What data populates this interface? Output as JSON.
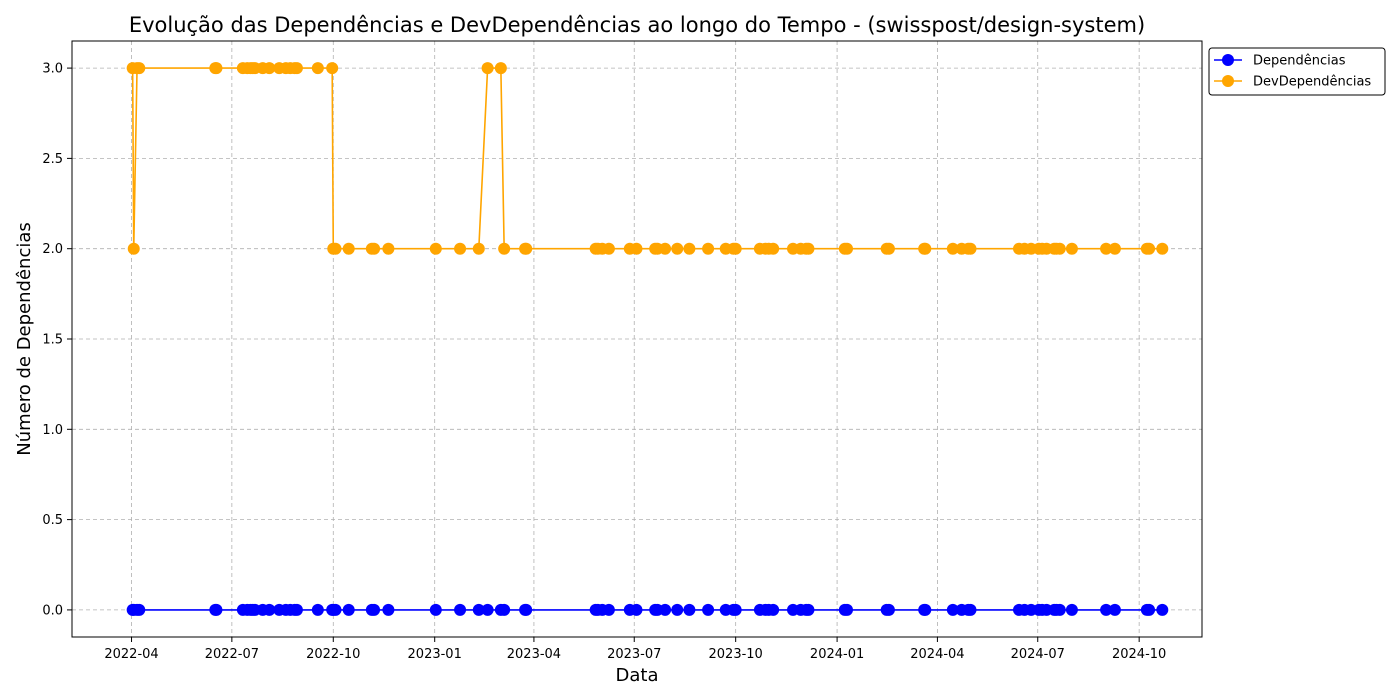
{
  "chart_data": {
    "type": "line",
    "title": "Evolução das Dependências e DevDependências ao longo do Tempo - (swisspost/design-system)",
    "xlabel": "Data",
    "ylabel": "Número de Dependências",
    "xlim": [
      "2022-02-06",
      "2024-11-27"
    ],
    "ylim": [
      -0.15,
      3.15
    ],
    "x_ticks": [
      "2022-04",
      "2022-07",
      "2022-10",
      "2023-01",
      "2023-04",
      "2023-07",
      "2023-10",
      "2024-01",
      "2024-04",
      "2024-07",
      "2024-10"
    ],
    "y_ticks": [
      "0.0",
      "0.5",
      "1.0",
      "1.5",
      "2.0",
      "2.5",
      "3.0"
    ],
    "grid": true,
    "legend": {
      "position": "top-right-outside"
    },
    "series": [
      {
        "name": "Dependências",
        "color": "#0000ff",
        "points": [
          [
            "2022-04-02",
            0
          ],
          [
            "2022-04-03",
            0
          ],
          [
            "2022-04-06",
            0
          ],
          [
            "2022-04-08",
            0
          ],
          [
            "2022-06-16",
            0
          ],
          [
            "2022-06-17",
            0
          ],
          [
            "2022-07-11",
            0
          ],
          [
            "2022-07-15",
            0
          ],
          [
            "2022-07-18",
            0
          ],
          [
            "2022-07-20",
            0
          ],
          [
            "2022-07-22",
            0
          ],
          [
            "2022-07-29",
            0
          ],
          [
            "2022-08-04",
            0
          ],
          [
            "2022-08-13",
            0
          ],
          [
            "2022-08-19",
            0
          ],
          [
            "2022-08-23",
            0
          ],
          [
            "2022-08-27",
            0
          ],
          [
            "2022-08-29",
            0
          ],
          [
            "2022-09-17",
            0
          ],
          [
            "2022-09-30",
            0
          ],
          [
            "2022-10-01",
            0
          ],
          [
            "2022-10-03",
            0
          ],
          [
            "2022-10-15",
            0
          ],
          [
            "2022-11-05",
            0
          ],
          [
            "2022-11-07",
            0
          ],
          [
            "2022-11-20",
            0
          ],
          [
            "2023-01-02",
            0
          ],
          [
            "2023-01-24",
            0
          ],
          [
            "2023-02-10",
            0
          ],
          [
            "2023-02-18",
            0
          ],
          [
            "2023-03-02",
            0
          ],
          [
            "2023-03-05",
            0
          ],
          [
            "2023-03-24",
            0
          ],
          [
            "2023-03-25",
            0
          ],
          [
            "2023-05-27",
            0
          ],
          [
            "2023-05-29",
            0
          ],
          [
            "2023-06-02",
            0
          ],
          [
            "2023-06-08",
            0
          ],
          [
            "2023-06-27",
            0
          ],
          [
            "2023-07-03",
            0
          ],
          [
            "2023-07-20",
            0
          ],
          [
            "2023-07-22",
            0
          ],
          [
            "2023-07-29",
            0
          ],
          [
            "2023-08-09",
            0
          ],
          [
            "2023-08-20",
            0
          ],
          [
            "2023-09-06",
            0
          ],
          [
            "2023-09-22",
            0
          ],
          [
            "2023-09-29",
            0
          ],
          [
            "2023-10-01",
            0
          ],
          [
            "2023-10-23",
            0
          ],
          [
            "2023-10-28",
            0
          ],
          [
            "2023-10-31",
            0
          ],
          [
            "2023-11-04",
            0
          ],
          [
            "2023-11-22",
            0
          ],
          [
            "2023-11-29",
            0
          ],
          [
            "2023-12-04",
            0
          ],
          [
            "2023-12-06",
            0
          ],
          [
            "2024-01-08",
            0
          ],
          [
            "2024-01-10",
            0
          ],
          [
            "2024-02-15",
            0
          ],
          [
            "2024-02-17",
            0
          ],
          [
            "2024-03-20",
            0
          ],
          [
            "2024-03-21",
            0
          ],
          [
            "2024-04-15",
            0
          ],
          [
            "2024-04-23",
            0
          ],
          [
            "2024-04-29",
            0
          ],
          [
            "2024-05-01",
            0
          ],
          [
            "2024-06-14",
            0
          ],
          [
            "2024-06-19",
            0
          ],
          [
            "2024-06-25",
            0
          ],
          [
            "2024-07-02",
            0
          ],
          [
            "2024-07-05",
            0
          ],
          [
            "2024-07-09",
            0
          ],
          [
            "2024-07-16",
            0
          ],
          [
            "2024-07-18",
            0
          ],
          [
            "2024-07-21",
            0
          ],
          [
            "2024-08-01",
            0
          ],
          [
            "2024-09-01",
            0
          ],
          [
            "2024-09-09",
            0
          ],
          [
            "2024-10-08",
            0
          ],
          [
            "2024-10-10",
            0
          ],
          [
            "2024-10-22",
            0
          ]
        ]
      },
      {
        "name": "DevDependências",
        "color": "#ffa500",
        "points": [
          [
            "2022-04-02",
            3
          ],
          [
            "2022-04-03",
            2
          ],
          [
            "2022-04-06",
            3
          ],
          [
            "2022-04-08",
            3
          ],
          [
            "2022-06-16",
            3
          ],
          [
            "2022-06-17",
            3
          ],
          [
            "2022-07-11",
            3
          ],
          [
            "2022-07-15",
            3
          ],
          [
            "2022-07-18",
            3
          ],
          [
            "2022-07-20",
            3
          ],
          [
            "2022-07-22",
            3
          ],
          [
            "2022-07-29",
            3
          ],
          [
            "2022-08-04",
            3
          ],
          [
            "2022-08-13",
            3
          ],
          [
            "2022-08-19",
            3
          ],
          [
            "2022-08-23",
            3
          ],
          [
            "2022-08-27",
            3
          ],
          [
            "2022-08-29",
            3
          ],
          [
            "2022-09-17",
            3
          ],
          [
            "2022-09-30",
            3
          ],
          [
            "2022-10-01",
            2
          ],
          [
            "2022-10-03",
            2
          ],
          [
            "2022-10-15",
            2
          ],
          [
            "2022-11-05",
            2
          ],
          [
            "2022-11-07",
            2
          ],
          [
            "2022-11-20",
            2
          ],
          [
            "2023-01-02",
            2
          ],
          [
            "2023-01-24",
            2
          ],
          [
            "2023-02-10",
            2
          ],
          [
            "2023-02-18",
            3
          ],
          [
            "2023-03-02",
            3
          ],
          [
            "2023-03-05",
            2
          ],
          [
            "2023-03-24",
            2
          ],
          [
            "2023-03-25",
            2
          ],
          [
            "2023-05-27",
            2
          ],
          [
            "2023-05-29",
            2
          ],
          [
            "2023-06-02",
            2
          ],
          [
            "2023-06-08",
            2
          ],
          [
            "2023-06-27",
            2
          ],
          [
            "2023-07-03",
            2
          ],
          [
            "2023-07-20",
            2
          ],
          [
            "2023-07-22",
            2
          ],
          [
            "2023-07-29",
            2
          ],
          [
            "2023-08-09",
            2
          ],
          [
            "2023-08-20",
            2
          ],
          [
            "2023-09-06",
            2
          ],
          [
            "2023-09-22",
            2
          ],
          [
            "2023-09-29",
            2
          ],
          [
            "2023-10-01",
            2
          ],
          [
            "2023-10-23",
            2
          ],
          [
            "2023-10-28",
            2
          ],
          [
            "2023-10-31",
            2
          ],
          [
            "2023-11-04",
            2
          ],
          [
            "2023-11-22",
            2
          ],
          [
            "2023-11-29",
            2
          ],
          [
            "2023-12-04",
            2
          ],
          [
            "2023-12-06",
            2
          ],
          [
            "2024-01-08",
            2
          ],
          [
            "2024-01-10",
            2
          ],
          [
            "2024-02-15",
            2
          ],
          [
            "2024-02-17",
            2
          ],
          [
            "2024-03-20",
            2
          ],
          [
            "2024-03-21",
            2
          ],
          [
            "2024-04-15",
            2
          ],
          [
            "2024-04-23",
            2
          ],
          [
            "2024-04-29",
            2
          ],
          [
            "2024-05-01",
            2
          ],
          [
            "2024-06-14",
            2
          ],
          [
            "2024-06-19",
            2
          ],
          [
            "2024-06-25",
            2
          ],
          [
            "2024-07-02",
            2
          ],
          [
            "2024-07-05",
            2
          ],
          [
            "2024-07-09",
            2
          ],
          [
            "2024-07-16",
            2
          ],
          [
            "2024-07-18",
            2
          ],
          [
            "2024-07-21",
            2
          ],
          [
            "2024-08-01",
            2
          ],
          [
            "2024-09-01",
            2
          ],
          [
            "2024-09-09",
            2
          ],
          [
            "2024-10-08",
            2
          ],
          [
            "2024-10-10",
            2
          ],
          [
            "2024-10-22",
            2
          ]
        ]
      }
    ]
  }
}
